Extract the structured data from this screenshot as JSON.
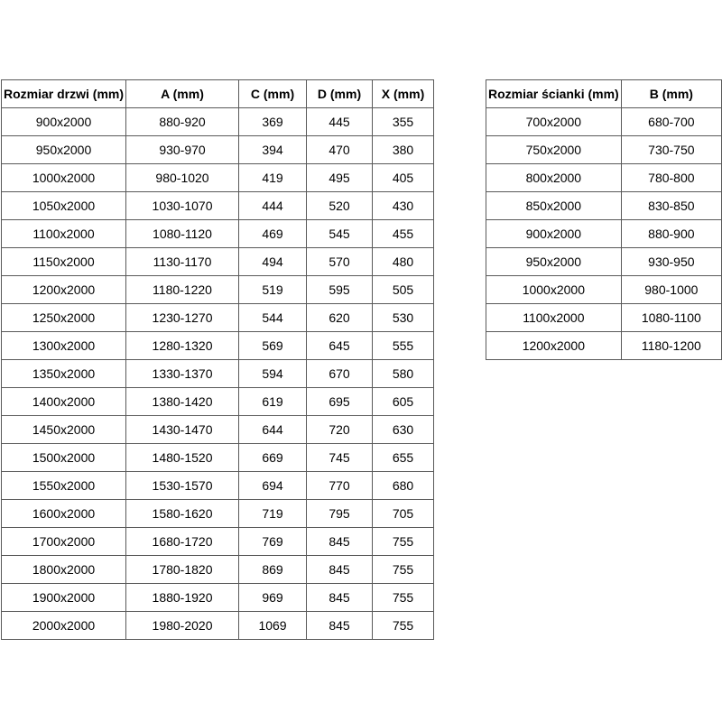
{
  "page": {
    "background": "#ffffff"
  },
  "colors": {
    "border": "#595959",
    "text": "#000000",
    "background": "#ffffff"
  },
  "doors_table": {
    "headers": [
      "Rozmiar drzwi (mm)",
      "A (mm)",
      "C (mm)",
      "D (mm)",
      "X (mm)"
    ],
    "rows": [
      [
        "900x2000",
        "880-920",
        "369",
        "445",
        "355"
      ],
      [
        "950x2000",
        "930-970",
        "394",
        "470",
        "380"
      ],
      [
        "1000x2000",
        "980-1020",
        "419",
        "495",
        "405"
      ],
      [
        "1050x2000",
        "1030-1070",
        "444",
        "520",
        "430"
      ],
      [
        "1100x2000",
        "1080-1120",
        "469",
        "545",
        "455"
      ],
      [
        "1150x2000",
        "1130-1170",
        "494",
        "570",
        "480"
      ],
      [
        "1200x2000",
        "1180-1220",
        "519",
        "595",
        "505"
      ],
      [
        "1250x2000",
        "1230-1270",
        "544",
        "620",
        "530"
      ],
      [
        "1300x2000",
        "1280-1320",
        "569",
        "645",
        "555"
      ],
      [
        "1350x2000",
        "1330-1370",
        "594",
        "670",
        "580"
      ],
      [
        "1400x2000",
        "1380-1420",
        "619",
        "695",
        "605"
      ],
      [
        "1450x2000",
        "1430-1470",
        "644",
        "720",
        "630"
      ],
      [
        "1500x2000",
        "1480-1520",
        "669",
        "745",
        "655"
      ],
      [
        "1550x2000",
        "1530-1570",
        "694",
        "770",
        "680"
      ],
      [
        "1600x2000",
        "1580-1620",
        "719",
        "795",
        "705"
      ],
      [
        "1700x2000",
        "1680-1720",
        "769",
        "845",
        "755"
      ],
      [
        "1800x2000",
        "1780-1820",
        "869",
        "845",
        "755"
      ],
      [
        "1900x2000",
        "1880-1920",
        "969",
        "845",
        "755"
      ],
      [
        "2000x2000",
        "1980-2020",
        "1069",
        "845",
        "755"
      ]
    ]
  },
  "walls_table": {
    "headers": [
      "Rozmiar ścianki (mm)",
      "B (mm)"
    ],
    "rows": [
      [
        "700x2000",
        "680-700"
      ],
      [
        "750x2000",
        "730-750"
      ],
      [
        "800x2000",
        "780-800"
      ],
      [
        "850x2000",
        "830-850"
      ],
      [
        "900x2000",
        "880-900"
      ],
      [
        "950x2000",
        "930-950"
      ],
      [
        "1000x2000",
        "980-1000"
      ],
      [
        "1100x2000",
        "1080-1100"
      ],
      [
        "1200x2000",
        "1180-1200"
      ]
    ]
  }
}
